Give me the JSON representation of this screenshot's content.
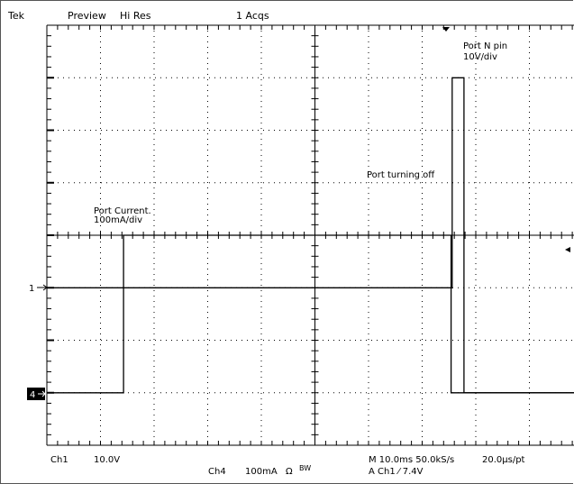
{
  "header": {
    "brand": "Tek",
    "mode": "Preview",
    "acq_mode": "Hi Res",
    "acq_count": "1 Acqs"
  },
  "markers": {
    "ch1_marker": "1",
    "ch4_marker": "4"
  },
  "footer": {
    "ch1_label": "Ch1",
    "ch1_scale": "10.0V",
    "ch4_label": "Ch4",
    "ch4_scale": "100mA",
    "ch4_coupling": "Ω",
    "ch4_bw": "BW",
    "timebase": "M 10.0ms 50.0kS/s",
    "sample_interval": "20.0μs/pt",
    "trigger": "A Ch1 ⁄ 7.4V"
  },
  "chart_data": {
    "type": "line",
    "title": "",
    "xlabel": "",
    "ylabel": "",
    "x_unit": "ms",
    "xlim": [
      0,
      100
    ],
    "grid": true,
    "divisions": {
      "x": 10,
      "y": 8
    },
    "annotations": [
      "Port turning off"
    ],
    "series": [
      {
        "name": "Port Current",
        "label_lines": [
          "Port Current.",
          "100mA/div"
        ],
        "channel": "Ch4",
        "unit": "mA",
        "x": [
          0,
          14.3,
          14.3,
          75.4,
          75.4,
          100
        ],
        "y": [
          0,
          0,
          300,
          300,
          0,
          0
        ]
      },
      {
        "name": "Port N pin",
        "label_lines": [
          "Port N pin",
          "10V/div"
        ],
        "channel": "Ch1",
        "unit": "V",
        "x": [
          0,
          75.6,
          75.6,
          77.8,
          77.8,
          100
        ],
        "y": [
          0,
          0,
          40,
          40,
          -20,
          -20
        ]
      }
    ]
  }
}
